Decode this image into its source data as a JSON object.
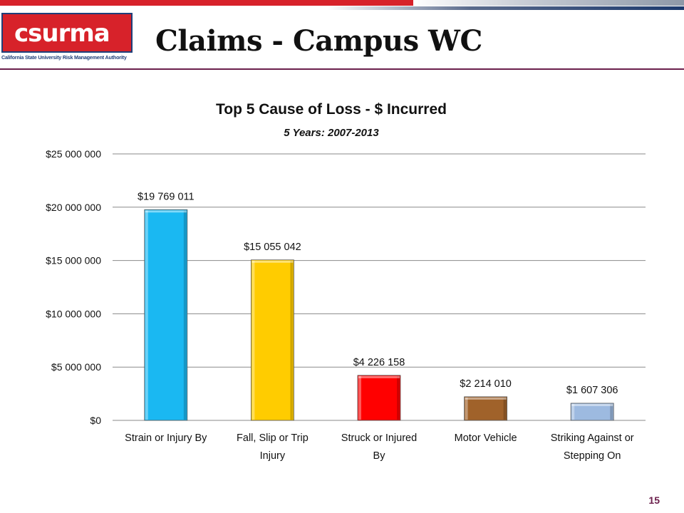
{
  "slide": {
    "title": "Claims - Campus WC",
    "page_number": "15"
  },
  "logo": {
    "text": "csurma",
    "tagline": "California State University Risk Management Authority"
  },
  "colors": {
    "accent_red": "#d7222a",
    "navy": "#1f3f7a",
    "rule": "#6b1f4c"
  },
  "chart_data": {
    "type": "bar",
    "title": "Top 5 Cause of Loss - $ Incurred",
    "subtitle": "5 Years: 2007-2013",
    "categories": [
      [
        "Strain or Injury By"
      ],
      [
        "Fall, Slip or Trip",
        "Injury"
      ],
      [
        "Struck or Injured",
        "By"
      ],
      [
        "Motor Vehicle"
      ],
      [
        "Striking Against or",
        "Stepping On"
      ]
    ],
    "values": [
      19769011,
      15055042,
      4226158,
      2214010,
      1607306
    ],
    "data_labels": [
      "$19 769 011",
      "$15 055 042",
      "$4 226 158",
      "$2 214 010",
      "$1 607 306"
    ],
    "bar_colors": [
      "#1ab8f2",
      "#ffcc00",
      "#ff0000",
      "#a0622a",
      "#9dbae0"
    ],
    "ylim": [
      0,
      25000000
    ],
    "y_ticks": [
      0,
      5000000,
      10000000,
      15000000,
      20000000,
      25000000
    ],
    "y_tick_labels": [
      "$0",
      "$5 000 000",
      "$10 000 000",
      "$15 000 000",
      "$20 000 000",
      "$25 000 000"
    ],
    "grid": true,
    "legend": "none",
    "xlabel": "",
    "ylabel": ""
  }
}
